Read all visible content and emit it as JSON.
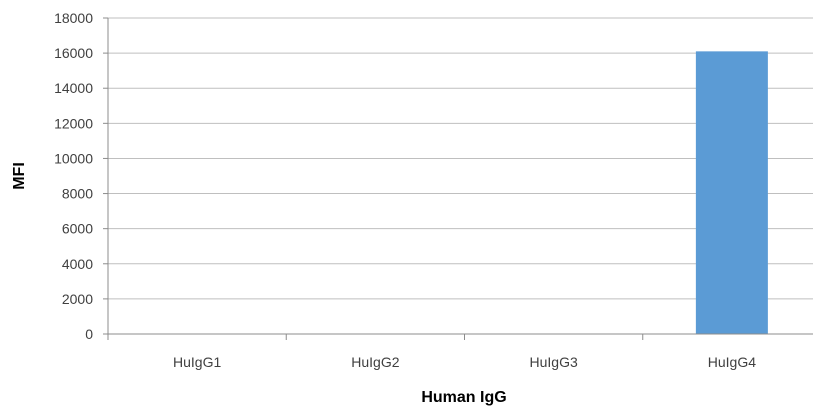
{
  "chart_data": {
    "type": "bar",
    "categories": [
      "HuIgG1",
      "HuIgG2",
      "HuIgG3",
      "HuIgG4"
    ],
    "values": [
      0,
      0,
      0,
      16100
    ],
    "title": "",
    "xlabel": "Human IgG",
    "ylabel": "MFI",
    "ylim": [
      0,
      18000
    ],
    "yticks": [
      0,
      2000,
      4000,
      6000,
      8000,
      10000,
      12000,
      14000,
      16000,
      18000
    ],
    "grid": true,
    "legend": "none",
    "bar_color": "#5b9bd5"
  }
}
